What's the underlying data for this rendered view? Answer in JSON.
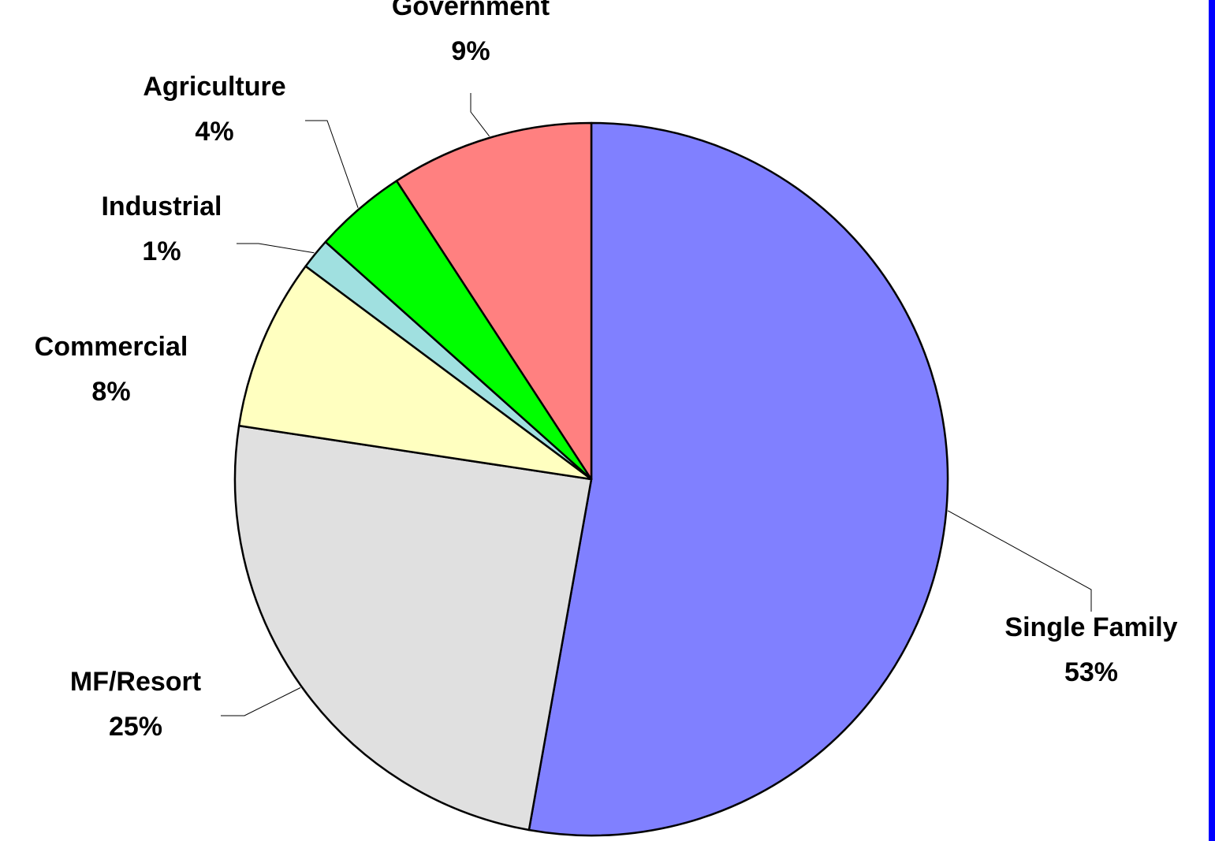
{
  "chart_data": {
    "type": "pie",
    "title": "",
    "start_angle_deg": 0,
    "direction": "clockwise",
    "slices": [
      {
        "label": "Single Family",
        "percent_label": "53%",
        "value": 52.8,
        "color": "#8080ff"
      },
      {
        "label": "MF/Resort",
        "percent_label": "25%",
        "value": 24.6,
        "color": "#e0e0e0"
      },
      {
        "label": "Commercial",
        "percent_label": "8%",
        "value": 7.8,
        "color": "#ffffc0"
      },
      {
        "label": "Industrial",
        "percent_label": "1%",
        "value": 1.4,
        "color": "#a0e0e0"
      },
      {
        "label": "Agriculture",
        "percent_label": "4%",
        "value": 4.2,
        "color": "#00ff00"
      },
      {
        "label": "Government",
        "percent_label": "9%",
        "value": 9.2,
        "color": "#ff8080"
      }
    ],
    "data_labels": "outside with leader lines",
    "legend": "none"
  },
  "frame": {
    "right_edge_color": "#0000ff"
  }
}
